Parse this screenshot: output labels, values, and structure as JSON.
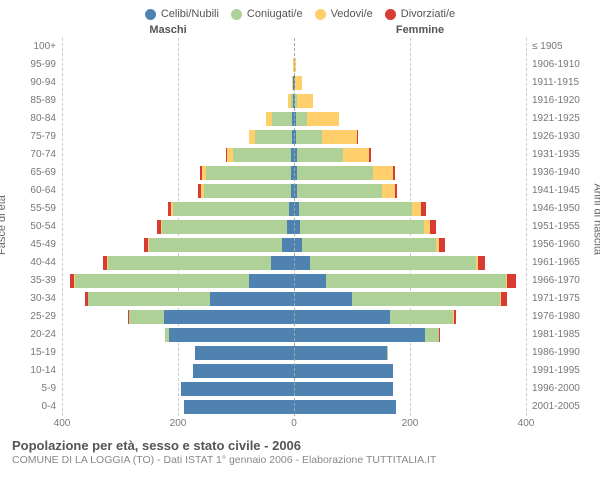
{
  "legend": [
    {
      "label": "Celibi/Nubili",
      "color": "#4f82b1"
    },
    {
      "label": "Coniugati/e",
      "color": "#aed198"
    },
    {
      "label": "Vedovi/e",
      "color": "#ffcf6b"
    },
    {
      "label": "Divorziati/e",
      "color": "#d83a34"
    }
  ],
  "headers": {
    "male": "Maschi",
    "female": "Femmine"
  },
  "axis_titles": {
    "left": "Fasce di età",
    "right": "Anni di nascita"
  },
  "title": "Popolazione per età, sesso e stato civile - 2006",
  "subtitle": "COMUNE DI LA LOGGIA (TO) - Dati ISTAT 1° gennaio 2006 - Elaborazione TUTTITALIA.IT",
  "max_value": 400,
  "xticks": [
    400,
    200,
    0,
    200,
    400
  ],
  "colors": {
    "grid": "#cccccc",
    "centerline": "#99aaaa",
    "text": "#777777",
    "bg": "#ffffff"
  },
  "rows": [
    {
      "age": "100+",
      "birth": "≤ 1905",
      "m": [
        0,
        0,
        0,
        0
      ],
      "f": [
        0,
        0,
        0,
        0
      ]
    },
    {
      "age": "95-99",
      "birth": "1906-1910",
      "m": [
        0,
        0,
        1,
        0
      ],
      "f": [
        0,
        0,
        3,
        0
      ]
    },
    {
      "age": "90-94",
      "birth": "1911-1915",
      "m": [
        1,
        1,
        2,
        0
      ],
      "f": [
        1,
        1,
        12,
        0
      ]
    },
    {
      "age": "85-89",
      "birth": "1916-1920",
      "m": [
        1,
        5,
        5,
        0
      ],
      "f": [
        2,
        3,
        28,
        0
      ]
    },
    {
      "age": "80-84",
      "birth": "1921-1925",
      "m": [
        3,
        35,
        10,
        0
      ],
      "f": [
        3,
        20,
        55,
        0
      ]
    },
    {
      "age": "75-79",
      "birth": "1926-1930",
      "m": [
        3,
        65,
        10,
        0
      ],
      "f": [
        4,
        45,
        60,
        2
      ]
    },
    {
      "age": "70-74",
      "birth": "1931-1935",
      "m": [
        5,
        100,
        10,
        2
      ],
      "f": [
        5,
        80,
        45,
        3
      ]
    },
    {
      "age": "65-69",
      "birth": "1936-1940",
      "m": [
        6,
        145,
        8,
        3
      ],
      "f": [
        6,
        130,
        35,
        3
      ]
    },
    {
      "age": "60-64",
      "birth": "1941-1945",
      "m": [
        6,
        150,
        5,
        4
      ],
      "f": [
        6,
        145,
        23,
        4
      ]
    },
    {
      "age": "55-59",
      "birth": "1946-1950",
      "m": [
        8,
        200,
        4,
        6
      ],
      "f": [
        8,
        195,
        16,
        8
      ]
    },
    {
      "age": "50-54",
      "birth": "1951-1955",
      "m": [
        12,
        215,
        3,
        7
      ],
      "f": [
        10,
        215,
        10,
        9
      ]
    },
    {
      "age": "45-49",
      "birth": "1956-1960",
      "m": [
        20,
        230,
        2,
        7
      ],
      "f": [
        14,
        230,
        6,
        10
      ]
    },
    {
      "age": "40-44",
      "birth": "1961-1965",
      "m": [
        40,
        280,
        2,
        7
      ],
      "f": [
        28,
        285,
        4,
        12
      ]
    },
    {
      "age": "35-39",
      "birth": "1966-1970",
      "m": [
        78,
        300,
        1,
        8
      ],
      "f": [
        55,
        310,
        3,
        14
      ]
    },
    {
      "age": "30-34",
      "birth": "1971-1975",
      "m": [
        145,
        210,
        0,
        5
      ],
      "f": [
        100,
        255,
        2,
        10
      ]
    },
    {
      "age": "25-29",
      "birth": "1976-1980",
      "m": [
        225,
        60,
        0,
        2
      ],
      "f": [
        165,
        110,
        1,
        4
      ]
    },
    {
      "age": "20-24",
      "birth": "1981-1985",
      "m": [
        215,
        8,
        0,
        0
      ],
      "f": [
        225,
        25,
        0,
        1
      ]
    },
    {
      "age": "15-19",
      "birth": "1986-1990",
      "m": [
        170,
        0,
        0,
        0
      ],
      "f": [
        160,
        1,
        0,
        0
      ]
    },
    {
      "age": "10-14",
      "birth": "1991-1995",
      "m": [
        175,
        0,
        0,
        0
      ],
      "f": [
        170,
        0,
        0,
        0
      ]
    },
    {
      "age": "5-9",
      "birth": "1996-2000",
      "m": [
        195,
        0,
        0,
        0
      ],
      "f": [
        170,
        0,
        0,
        0
      ]
    },
    {
      "age": "0-4",
      "birth": "2001-2005",
      "m": [
        190,
        0,
        0,
        0
      ],
      "f": [
        175,
        0,
        0,
        0
      ]
    }
  ]
}
